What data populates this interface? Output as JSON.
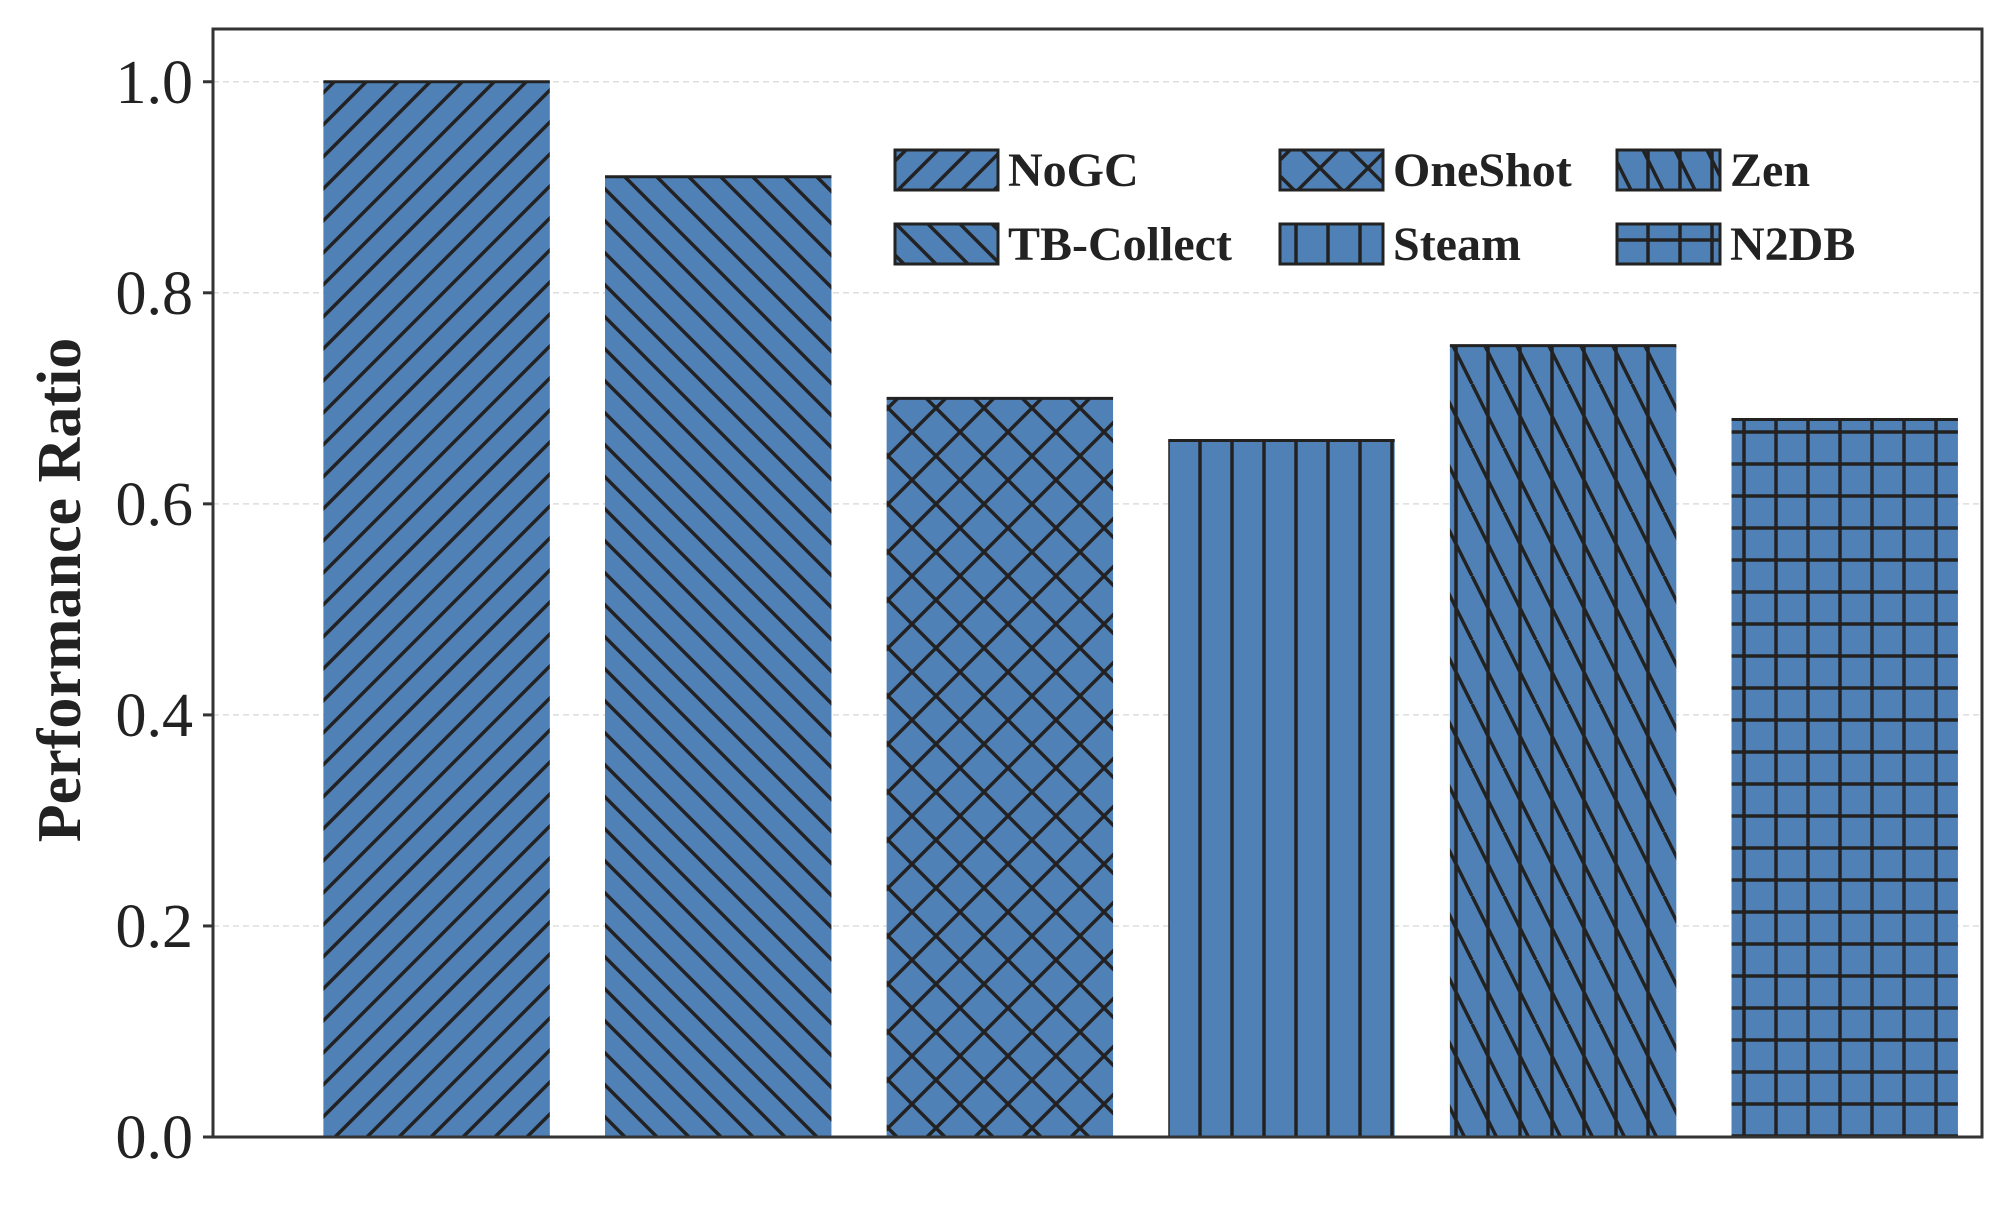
{
  "chart_data": {
    "type": "bar",
    "categories": [
      "NoGC",
      "TB-Collect",
      "OneShot",
      "Steam",
      "Zen",
      "N2DB"
    ],
    "values": [
      1.0,
      0.91,
      0.7,
      0.66,
      0.75,
      0.68
    ],
    "hatches": [
      "diagonal-up",
      "diagonal-down",
      "cross-diagonal",
      "vertical",
      "vertical-diagonal",
      "grid"
    ],
    "title": "",
    "xlabel": "",
    "ylabel": "Performance Ratio",
    "ylim": [
      0,
      1.05
    ],
    "yticks": [
      0.0,
      0.2,
      0.4,
      0.6,
      0.8,
      1.0
    ],
    "ytick_labels": [
      "0.0",
      "0.2",
      "0.4",
      "0.6",
      "0.8",
      "1.0"
    ],
    "grid": true,
    "legend_position": "top-right",
    "legend_columns": 3,
    "legend_order": [
      "NoGC",
      "OneShot",
      "Zen",
      "TB-Collect",
      "Steam",
      "N2DB"
    ],
    "bar_color": "#4f81b7",
    "hatch_color": "#222222",
    "axis_color": "#333333",
    "grid_color": "#dddddd"
  }
}
